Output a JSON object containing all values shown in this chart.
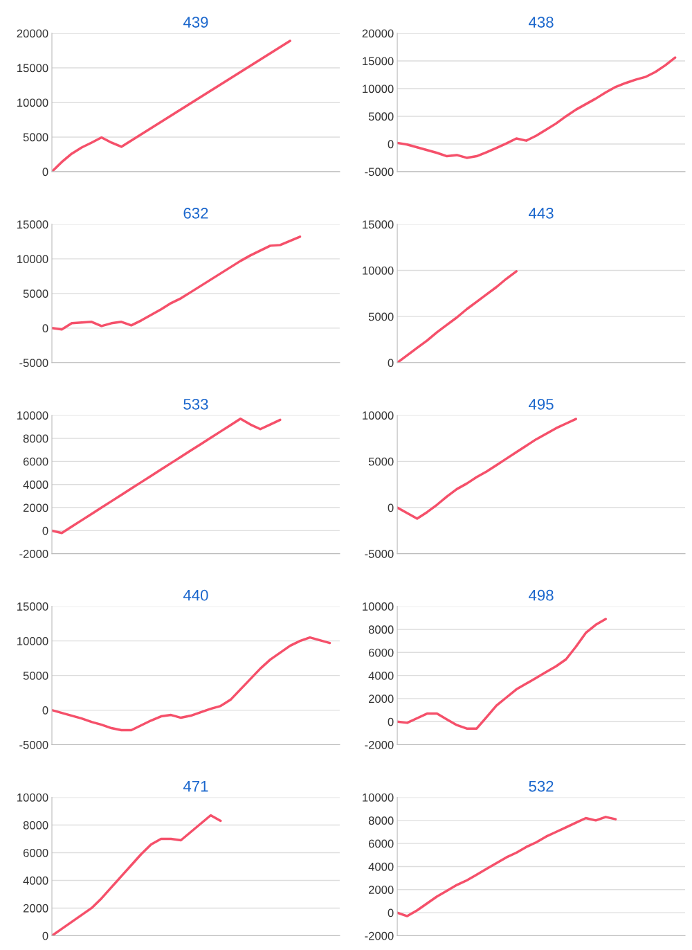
{
  "chart_data": [
    {
      "type": "line",
      "title": "439",
      "categories": [
        null,
        null,
        null,
        null,
        null,
        null,
        null,
        null,
        null,
        null,
        null,
        null,
        null,
        null,
        null,
        null,
        null,
        null,
        null,
        null,
        null,
        null,
        null,
        null,
        null,
        null,
        null,
        null,
        null,
        null
      ],
      "ylim": [
        0,
        20000
      ],
      "yticks": [
        0,
        5000,
        10000,
        15000,
        20000
      ],
      "grid": "y",
      "line_style": "solid",
      "series": [
        {
          "color": "#f5506a",
          "values": [
            0,
            1400,
            2600,
            3500,
            4200,
            4950,
            4200,
            3600,
            4500,
            5400,
            6300,
            7200,
            8100,
            9000,
            9900,
            10800,
            11700,
            12600,
            13500,
            14400,
            15300,
            16200,
            17100,
            18000,
            18900,
            null,
            null,
            null,
            null,
            null
          ]
        }
      ]
    },
    {
      "type": "line",
      "title": "438",
      "categories": [
        null,
        null,
        null,
        null,
        null,
        null,
        null,
        null,
        null,
        null,
        null,
        null,
        null,
        null,
        null,
        null,
        null,
        null,
        null,
        null,
        null,
        null,
        null,
        null,
        null,
        null,
        null,
        null,
        null,
        null
      ],
      "ylim": [
        -5000,
        20000
      ],
      "yticks": [
        -5000,
        0,
        5000,
        10000,
        15000,
        20000
      ],
      "grid": "y",
      "line_style": "solid",
      "series": [
        {
          "color": "#f5506a",
          "values": [
            200,
            -100,
            -600,
            -1100,
            -1600,
            -2200,
            -2000,
            -2500,
            -2200,
            -1500,
            -700,
            100,
            1000,
            600,
            1500,
            2600,
            3700,
            5000,
            6200,
            7200,
            8200,
            9300,
            10300,
            11000,
            11600,
            12100,
            13000,
            14200,
            15600,
            null
          ]
        }
      ]
    },
    {
      "type": "line",
      "title": "632",
      "categories": [
        null,
        null,
        null,
        null,
        null,
        null,
        null,
        null,
        null,
        null,
        null,
        null,
        null,
        null,
        null,
        null,
        null,
        null,
        null,
        null,
        null,
        null,
        null,
        null,
        null,
        null,
        null,
        null,
        null,
        null
      ],
      "ylim": [
        -5000,
        15000
      ],
      "yticks": [
        -5000,
        0,
        5000,
        10000,
        15000
      ],
      "grid": "y",
      "line_style": "solid",
      "series": [
        {
          "color": "#f5506a",
          "values": [
            0,
            -200,
            700,
            800,
            900,
            300,
            700,
            900,
            400,
            1100,
            1900,
            2700,
            3600,
            4300,
            5200,
            6100,
            7000,
            7900,
            8800,
            9700,
            10500,
            11200,
            11900,
            12000,
            12600,
            13200,
            null,
            null,
            null,
            null
          ]
        }
      ]
    },
    {
      "type": "line",
      "title": "443",
      "categories": [
        null,
        null,
        null,
        null,
        null,
        null,
        null,
        null,
        null,
        null,
        null,
        null,
        null,
        null,
        null,
        null,
        null,
        null,
        null,
        null,
        null,
        null,
        null,
        null,
        null,
        null,
        null,
        null,
        null,
        null
      ],
      "ylim": [
        0,
        15000
      ],
      "yticks": [
        0,
        5000,
        10000,
        15000
      ],
      "grid": "y",
      "line_style": "solid",
      "series": [
        {
          "color": "#f5506a",
          "values": [
            0,
            800,
            1600,
            2400,
            3300,
            4100,
            4900,
            5800,
            6600,
            7400,
            8200,
            9100,
            9900,
            null,
            null,
            null,
            null,
            null,
            null,
            null,
            null,
            null,
            null,
            null,
            null,
            null,
            null,
            null,
            null,
            null
          ]
        }
      ]
    },
    {
      "type": "line",
      "title": "533",
      "categories": [
        null,
        null,
        null,
        null,
        null,
        null,
        null,
        null,
        null,
        null,
        null,
        null,
        null,
        null,
        null,
        null,
        null,
        null,
        null,
        null,
        null,
        null,
        null,
        null,
        null,
        null,
        null,
        null,
        null,
        null
      ],
      "ylim": [
        -2000,
        10000
      ],
      "yticks": [
        -2000,
        0,
        2000,
        4000,
        6000,
        8000,
        10000
      ],
      "grid": "y",
      "line_style": "solid",
      "series": [
        {
          "color": "#f5506a",
          "values": [
            0,
            -200,
            350,
            900,
            1450,
            2000,
            2550,
            3100,
            3650,
            4200,
            4750,
            5300,
            5850,
            6400,
            6950,
            7500,
            8050,
            8600,
            9150,
            9700,
            9200,
            8800,
            9200,
            9600,
            null,
            null,
            null,
            null,
            null,
            null
          ]
        }
      ]
    },
    {
      "type": "line",
      "title": "495",
      "categories": [
        null,
        null,
        null,
        null,
        null,
        null,
        null,
        null,
        null,
        null,
        null,
        null,
        null,
        null,
        null,
        null,
        null,
        null,
        null,
        null,
        null,
        null,
        null,
        null,
        null,
        null,
        null,
        null,
        null,
        null
      ],
      "ylim": [
        -5000,
        10000
      ],
      "yticks": [
        -5000,
        0,
        5000,
        10000
      ],
      "grid": "y",
      "line_style": "solid",
      "series": [
        {
          "color": "#f5506a",
          "values": [
            0,
            -600,
            -1200,
            -500,
            300,
            1200,
            2000,
            2600,
            3300,
            3900,
            4600,
            5300,
            6000,
            6700,
            7400,
            8000,
            8600,
            9100,
            9600,
            null,
            null,
            null,
            null,
            null,
            null,
            null,
            null,
            null,
            null,
            null
          ]
        }
      ]
    },
    {
      "type": "line",
      "title": "440",
      "categories": [
        null,
        null,
        null,
        null,
        null,
        null,
        null,
        null,
        null,
        null,
        null,
        null,
        null,
        null,
        null,
        null,
        null,
        null,
        null,
        null,
        null,
        null,
        null,
        null,
        null,
        null,
        null,
        null,
        null,
        null
      ],
      "ylim": [
        -5000,
        15000
      ],
      "yticks": [
        -5000,
        0,
        5000,
        10000,
        15000
      ],
      "grid": "y",
      "line_style": "solid",
      "series": [
        {
          "color": "#f5506a",
          "values": [
            0,
            -400,
            -800,
            -1200,
            -1700,
            -2100,
            -2600,
            -2900,
            -2900,
            -2200,
            -1500,
            -900,
            -700,
            -1100,
            -800,
            -300,
            200,
            600,
            1500,
            3000,
            4500,
            6000,
            7300,
            8300,
            9300,
            10000,
            10500,
            10100,
            9700,
            null
          ]
        }
      ]
    },
    {
      "type": "line",
      "title": "498",
      "categories": [
        null,
        null,
        null,
        null,
        null,
        null,
        null,
        null,
        null,
        null,
        null,
        null,
        null,
        null,
        null,
        null,
        null,
        null,
        null,
        null,
        null,
        null,
        null,
        null,
        null,
        null,
        null,
        null,
        null,
        null
      ],
      "ylim": [
        -2000,
        10000
      ],
      "yticks": [
        -2000,
        0,
        2000,
        4000,
        6000,
        8000,
        10000
      ],
      "grid": "y",
      "line_style": "solid",
      "series": [
        {
          "color": "#f5506a",
          "values": [
            0,
            -100,
            300,
            700,
            700,
            200,
            -300,
            -600,
            -600,
            400,
            1400,
            2100,
            2800,
            3300,
            3800,
            4300,
            4800,
            5400,
            6500,
            7700,
            8400,
            8900,
            null,
            null,
            null,
            null,
            null,
            null,
            null,
            null
          ]
        }
      ]
    },
    {
      "type": "line",
      "title": "471",
      "categories": [
        null,
        null,
        null,
        null,
        null,
        null,
        null,
        null,
        null,
        null,
        null,
        null,
        null,
        null,
        null,
        null,
        null,
        null,
        null,
        null,
        null,
        null,
        null,
        null,
        null,
        null,
        null,
        null,
        null,
        null
      ],
      "ylim": [
        0,
        10000
      ],
      "yticks": [
        0,
        2000,
        4000,
        6000,
        8000,
        10000
      ],
      "grid": "y",
      "line_style": "solid",
      "series": [
        {
          "color": "#f5506a",
          "values": [
            0,
            500,
            1000,
            1500,
            2000,
            2700,
            3500,
            4300,
            5100,
            5900,
            6600,
            7000,
            7000,
            6900,
            7500,
            8100,
            8700,
            8300,
            null,
            null,
            null,
            null,
            null,
            null,
            null,
            null,
            null,
            null,
            null,
            null
          ]
        }
      ]
    },
    {
      "type": "line",
      "title": "532",
      "categories": [
        null,
        null,
        null,
        null,
        null,
        null,
        null,
        null,
        null,
        null,
        null,
        null,
        null,
        null,
        null,
        null,
        null,
        null,
        null,
        null,
        null,
        null,
        null,
        null,
        null,
        null,
        null,
        null,
        null,
        null
      ],
      "ylim": [
        -2000,
        10000
      ],
      "yticks": [
        -2000,
        0,
        2000,
        4000,
        6000,
        8000,
        10000
      ],
      "grid": "y",
      "line_style": "solid",
      "series": [
        {
          "color": "#f5506a",
          "values": [
            0,
            -300,
            200,
            800,
            1400,
            1900,
            2400,
            2800,
            3300,
            3800,
            4300,
            4800,
            5200,
            5700,
            6100,
            6600,
            7000,
            7400,
            7800,
            8200,
            8000,
            8300,
            8100,
            null,
            null,
            null,
            null,
            null,
            null,
            null
          ]
        }
      ]
    }
  ]
}
